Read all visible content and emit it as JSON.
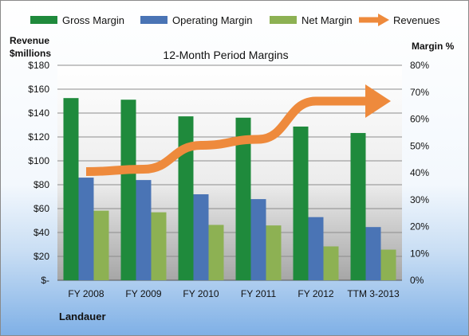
{
  "chart_data": {
    "type": "bar",
    "title": "12-Month Period Margins",
    "company": "Landauer",
    "categories": [
      "FY 2008",
      "FY 2009",
      "FY 2010",
      "FY 2011",
      "FY 2012",
      "TTM 3-2013"
    ],
    "left_axis": {
      "label_line1": "Revenue",
      "label_line2": "$millions",
      "ylim": [
        0,
        180
      ],
      "ticks": [
        "$-",
        "$20",
        "$40",
        "$60",
        "$80",
        "$100",
        "$120",
        "$140",
        "$160",
        "$180"
      ]
    },
    "right_axis": {
      "label": "Margin %",
      "ylim": [
        0,
        80
      ],
      "ticks": [
        "0%",
        "10%",
        "20%",
        "30%",
        "40%",
        "50%",
        "60%",
        "70%",
        "80%"
      ]
    },
    "series": [
      {
        "name": "Gross Margin",
        "color": "#1f8a3c",
        "axis": "right",
        "values": [
          67.8,
          67.2,
          61.0,
          60.5,
          57.2,
          54.8
        ]
      },
      {
        "name": "Operating Margin",
        "color": "#4a74b5",
        "axis": "right",
        "values": [
          38.2,
          37.3,
          32.0,
          30.2,
          23.5,
          19.8
        ]
      },
      {
        "name": "Net Margin",
        "color": "#8db153",
        "axis": "right",
        "values": [
          25.9,
          25.3,
          20.6,
          20.4,
          12.6,
          11.4
        ]
      },
      {
        "name": "Revenues",
        "color": "#ee8a3c",
        "axis": "left",
        "type": "line",
        "values": [
          91,
          93,
          113,
          118,
          150,
          150
        ]
      }
    ],
    "legend_position": "top",
    "grid": true
  }
}
